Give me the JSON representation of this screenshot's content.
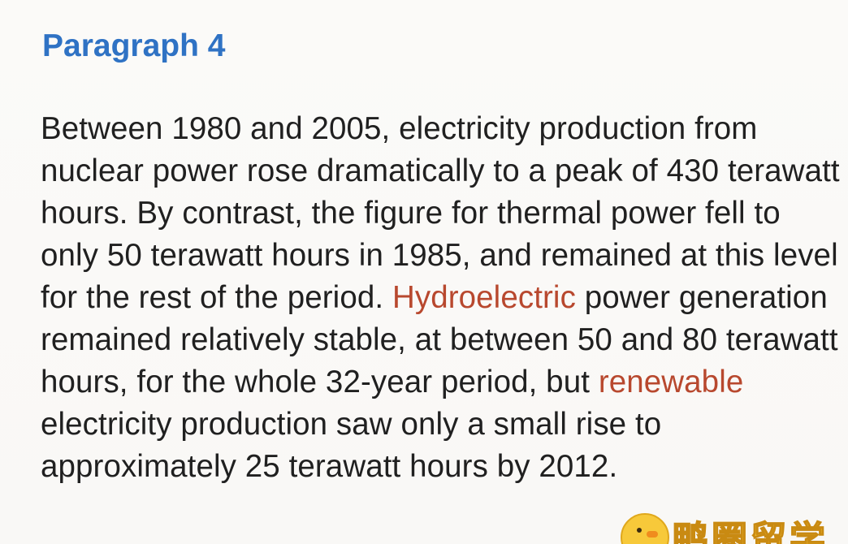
{
  "heading": "Paragraph 4",
  "paragraph": {
    "part1": "Between 1980 and 2005, electricity production from nuclear power rose dramatically to a peak of 430 terawatt hours. By contrast, the figure for thermal power fell to only 50 terawatt hours in 1985, and remained at this level for the rest of the period. ",
    "highlight1": "Hydroelectric",
    "part2": " power generation remained relatively stable, at between 50 and 80 terawatt hours, for the whole 32-year period, but ",
    "highlight2": "renewable",
    "part3": " electricity production saw only a small rise to approximately 25 terawatt hours by 2012."
  },
  "watermark": {
    "text": "鸭圈留学",
    "icon": "duck-logo-icon"
  },
  "colors": {
    "heading": "#2f72c4",
    "highlight": "#b8482e",
    "text": "#202020",
    "background": "#faf9f7"
  }
}
